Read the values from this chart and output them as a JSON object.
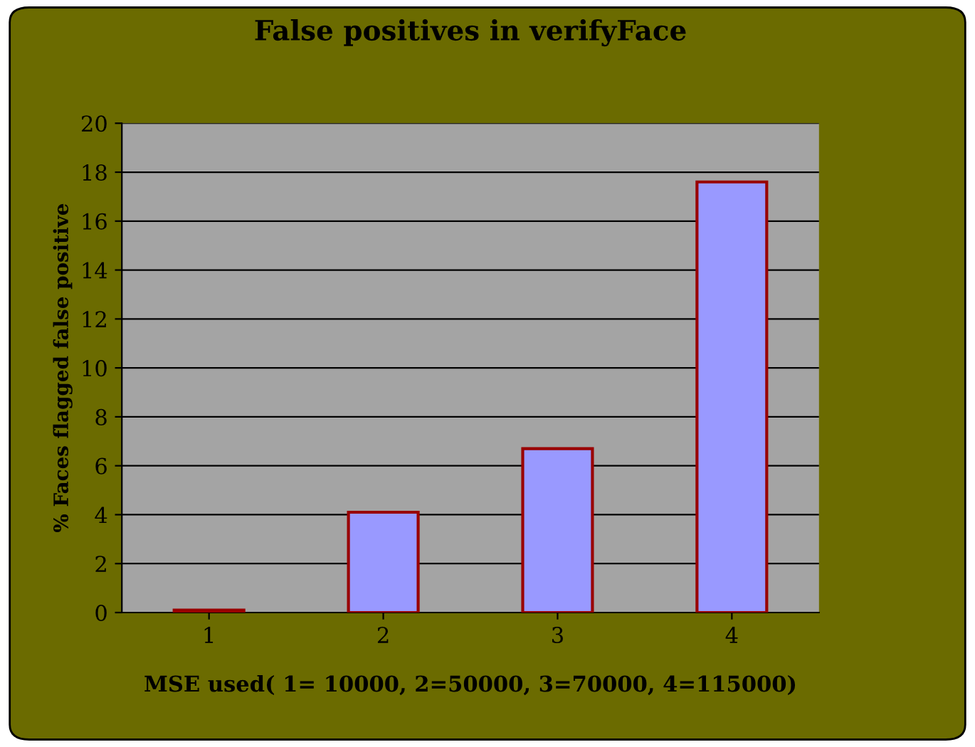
{
  "chart_data": {
    "type": "bar",
    "title": "False positives in verifyFace",
    "xlabel": "MSE used( 1= 10000, 2=50000, 3=70000, 4=115000)",
    "ylabel": "% Faces flagged false positive",
    "categories": [
      "1",
      "2",
      "3",
      "4"
    ],
    "series": [
      {
        "color": "#9999ff",
        "values": [
          0.1,
          4.1,
          6.7,
          17.6
        ]
      }
    ],
    "ylim": [
      0,
      20
    ],
    "yticks": [
      0,
      2,
      4,
      6,
      8,
      10,
      12,
      14,
      16,
      18,
      20
    ],
    "grid": "y",
    "legend": false
  }
}
